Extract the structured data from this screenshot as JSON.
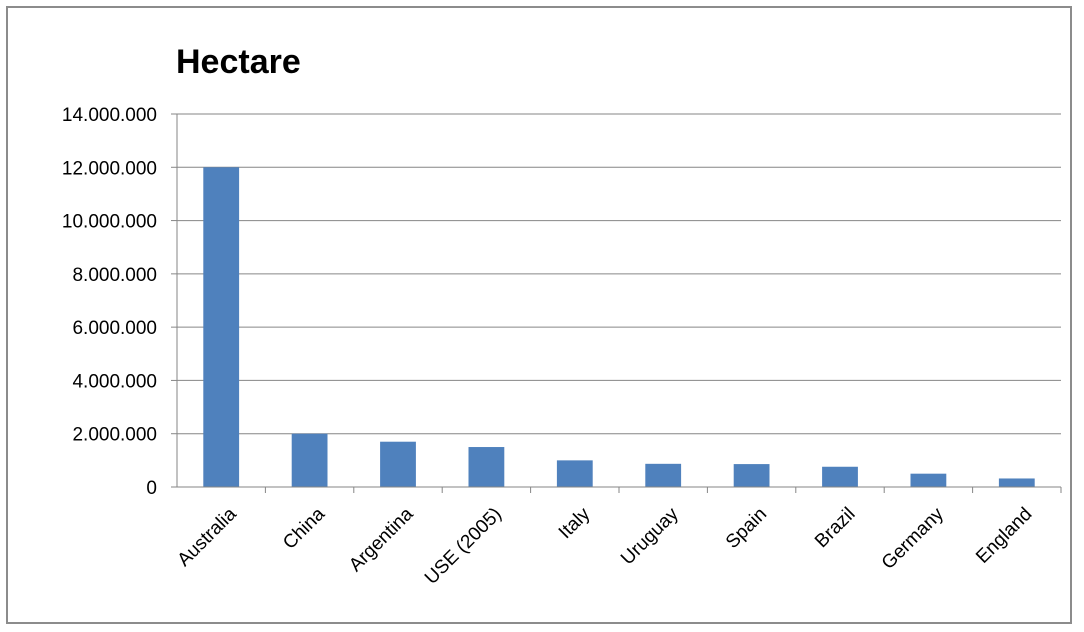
{
  "chart_data": {
    "type": "bar",
    "title": "Hectare",
    "xlabel": "",
    "ylabel": "",
    "categories": [
      "Australia",
      "China",
      "Argentina",
      "USE (2005)",
      "Italy",
      "Uruguay",
      "Spain",
      "Brazil",
      "Germany",
      "England"
    ],
    "values": [
      12000000,
      2000000,
      1700000,
      1500000,
      1000000,
      870000,
      860000,
      760000,
      500000,
      320000
    ],
    "ylim": [
      0,
      14000000
    ],
    "yticks": [
      0,
      2000000,
      4000000,
      6000000,
      8000000,
      10000000,
      12000000,
      14000000
    ],
    "ytick_labels": [
      "0",
      "2.000.000",
      "4.000.000",
      "6.000.000",
      "8.000.000",
      "10.000.000",
      "12.000.000",
      "14.000.000"
    ],
    "grid": true,
    "legend": "none",
    "bar_color": "#4f81bd"
  }
}
